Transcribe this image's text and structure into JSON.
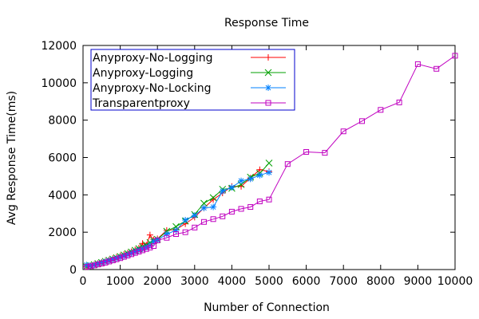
{
  "chart_data": {
    "type": "line",
    "title": "Response Time",
    "xlabel": "Number of Connection",
    "ylabel": "Avg Response Time(ms)",
    "xlim": [
      0,
      10000
    ],
    "ylim": [
      0,
      12000
    ],
    "xticks": [
      0,
      1000,
      2000,
      3000,
      4000,
      5000,
      6000,
      7000,
      8000,
      9000,
      10000
    ],
    "yticks": [
      0,
      2000,
      4000,
      6000,
      8000,
      10000,
      12000
    ],
    "grid": false,
    "legend_position": "top-left",
    "series": [
      {
        "name": "Anyproxy-No-Logging",
        "color": "#ff0000",
        "marker": "plus",
        "points": [
          [
            100,
            160
          ],
          [
            200,
            210
          ],
          [
            300,
            270
          ],
          [
            400,
            330
          ],
          [
            500,
            390
          ],
          [
            600,
            460
          ],
          [
            700,
            520
          ],
          [
            800,
            590
          ],
          [
            900,
            660
          ],
          [
            1000,
            730
          ],
          [
            1100,
            810
          ],
          [
            1200,
            880
          ],
          [
            1300,
            960
          ],
          [
            1400,
            1050
          ],
          [
            1500,
            1150
          ],
          [
            1600,
            1400
          ],
          [
            1700,
            1300
          ],
          [
            1800,
            1850
          ],
          [
            1900,
            1600
          ],
          [
            2000,
            1650
          ],
          [
            2250,
            2100
          ],
          [
            2500,
            2150
          ],
          [
            2750,
            2450
          ],
          [
            3000,
            2800
          ],
          [
            3250,
            3300
          ],
          [
            3500,
            3750
          ],
          [
            3750,
            4100
          ],
          [
            4000,
            4450
          ],
          [
            4250,
            4450
          ],
          [
            4500,
            4900
          ],
          [
            4750,
            5350
          ],
          [
            5000,
            5250
          ]
        ]
      },
      {
        "name": "Anyproxy-Logging",
        "color": "#00a000",
        "marker": "cross",
        "points": [
          [
            100,
            150
          ],
          [
            200,
            200
          ],
          [
            300,
            260
          ],
          [
            400,
            320
          ],
          [
            500,
            380
          ],
          [
            600,
            440
          ],
          [
            700,
            500
          ],
          [
            800,
            560
          ],
          [
            900,
            630
          ],
          [
            1000,
            700
          ],
          [
            1100,
            780
          ],
          [
            1200,
            860
          ],
          [
            1300,
            940
          ],
          [
            1400,
            1030
          ],
          [
            1500,
            1120
          ],
          [
            1600,
            1220
          ],
          [
            1700,
            1320
          ],
          [
            1800,
            1450
          ],
          [
            1900,
            1550
          ],
          [
            2000,
            1620
          ],
          [
            2250,
            2050
          ],
          [
            2500,
            2300
          ],
          [
            2750,
            2600
          ],
          [
            3000,
            2950
          ],
          [
            3250,
            3550
          ],
          [
            3500,
            3850
          ],
          [
            3750,
            4300
          ],
          [
            4000,
            4350
          ],
          [
            4250,
            4550
          ],
          [
            4500,
            4950
          ],
          [
            4750,
            5150
          ],
          [
            5000,
            5700
          ]
        ]
      },
      {
        "name": "Anyproxy-No-Locking",
        "color": "#0080ff",
        "marker": "star",
        "points": [
          [
            100,
            250
          ],
          [
            200,
            200
          ],
          [
            300,
            240
          ],
          [
            400,
            300
          ],
          [
            500,
            360
          ],
          [
            600,
            420
          ],
          [
            700,
            480
          ],
          [
            800,
            540
          ],
          [
            900,
            600
          ],
          [
            1000,
            660
          ],
          [
            1100,
            720
          ],
          [
            1200,
            800
          ],
          [
            1300,
            880
          ],
          [
            1400,
            960
          ],
          [
            1500,
            1040
          ],
          [
            1600,
            1120
          ],
          [
            1700,
            1200
          ],
          [
            1800,
            1300
          ],
          [
            1900,
            1500
          ],
          [
            2000,
            1580
          ],
          [
            2250,
            1900
          ],
          [
            2500,
            2100
          ],
          [
            2750,
            2650
          ],
          [
            3000,
            2900
          ],
          [
            3250,
            3300
          ],
          [
            3500,
            3350
          ],
          [
            3750,
            4200
          ],
          [
            4000,
            4400
          ],
          [
            4250,
            4750
          ],
          [
            4500,
            4850
          ],
          [
            4750,
            5050
          ],
          [
            5000,
            5200
          ]
        ]
      },
      {
        "name": "Transparentproxy",
        "color": "#c000c0",
        "marker": "square",
        "points": [
          [
            100,
            140
          ],
          [
            200,
            180
          ],
          [
            300,
            220
          ],
          [
            400,
            270
          ],
          [
            500,
            320
          ],
          [
            600,
            370
          ],
          [
            700,
            430
          ],
          [
            800,
            490
          ],
          [
            900,
            550
          ],
          [
            1000,
            610
          ],
          [
            1100,
            680
          ],
          [
            1200,
            750
          ],
          [
            1300,
            820
          ],
          [
            1400,
            890
          ],
          [
            1500,
            960
          ],
          [
            1600,
            1030
          ],
          [
            1700,
            1100
          ],
          [
            1800,
            1180
          ],
          [
            1900,
            1260
          ],
          [
            2000,
            1560
          ],
          [
            2250,
            1700
          ],
          [
            2500,
            1900
          ],
          [
            2750,
            2000
          ],
          [
            3000,
            2250
          ],
          [
            3250,
            2550
          ],
          [
            3500,
            2700
          ],
          [
            3750,
            2850
          ],
          [
            4000,
            3100
          ],
          [
            4250,
            3250
          ],
          [
            4500,
            3350
          ],
          [
            4750,
            3650
          ],
          [
            5000,
            3750
          ],
          [
            5500,
            5650
          ],
          [
            6000,
            6300
          ],
          [
            6500,
            6250
          ],
          [
            7000,
            7400
          ],
          [
            7500,
            7950
          ],
          [
            8000,
            8550
          ],
          [
            8500,
            8950
          ],
          [
            9000,
            11000
          ],
          [
            9500,
            10750
          ],
          [
            10000,
            11450
          ]
        ]
      }
    ]
  }
}
